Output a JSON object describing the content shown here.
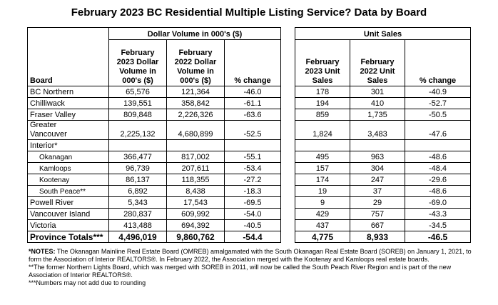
{
  "title": "February 2023 BC Residential Multiple Listing Service? Data by Board",
  "table": {
    "groups": [
      "Dollar Volume in 000's ($)",
      "Unit Sales"
    ],
    "columns": [
      "Board",
      "February 2023 Dollar Volume in 000's ($)",
      "February 2022 Dollar Volume in 000's ($)",
      "% change",
      "February 2023 Unit Sales",
      "February 2022 Unit Sales",
      "% change"
    ],
    "rows": [
      [
        "BC Northern",
        "65,576",
        "121,364",
        "-46.0",
        "178",
        "301",
        "-40.9"
      ],
      [
        "Chilliwack",
        "139,551",
        "358,842",
        "-61.1",
        "194",
        "410",
        "-52.7"
      ],
      [
        "Fraser Valley",
        "809,848",
        "2,226,326",
        "-63.6",
        "859",
        "1,735",
        "-50.5"
      ],
      [
        "Greater Vancouver",
        "2,225,132",
        "4,680,899",
        "-52.5",
        "1,824",
        "3,483",
        "-47.6"
      ],
      {
        "name": "Interior*",
        "rows": [
          [
            "Okanagan",
            "366,477",
            "817,002",
            "-55.1",
            "495",
            "963",
            "-48.6"
          ],
          [
            "Kamloops",
            "96,739",
            "207,611",
            "-53.4",
            "157",
            "304",
            "-48.4"
          ],
          [
            "Kootenay",
            "86,137",
            "118,355",
            "-27.2",
            "174",
            "247",
            "-29.6"
          ],
          [
            "South Peace**",
            "6,892",
            "8,438",
            "-18.3",
            "19",
            "37",
            "-48.6"
          ]
        ]
      },
      [
        "Powell River",
        "5,343",
        "17,543",
        "-69.5",
        "9",
        "29",
        "-69.0"
      ],
      [
        "Vancouver Island",
        "280,837",
        "609,992",
        "-54.0",
        "429",
        "757",
        "-43.3"
      ],
      [
        "Victoria",
        "413,488",
        "694,392",
        "-40.5",
        "437",
        "667",
        "-34.5"
      ]
    ],
    "totals": [
      "Province Totals***",
      "4,496,019",
      "9,860,762",
      "-54.4",
      "4,775",
      "8,933",
      "-46.5"
    ]
  },
  "notes": {
    "label": "*NOTES:",
    "items": [
      "The Okanagan Mainline Real Estate Board (OMREB) amalgamated with the South Okanagan Real Estate Board (SOREB) on January 1, 2021, to form the Association of Interior REALTORS®. In February 2022, the Association merged with the Kootenay and Kamloops real estate boards.",
      "**The former Northern Lights Board, which was merged with SOREB in 2011, will now be called the South Peach River Region and is part of the new Association of Interior REALTORS®.",
      "***Numbers may not add due to rounding"
    ]
  }
}
